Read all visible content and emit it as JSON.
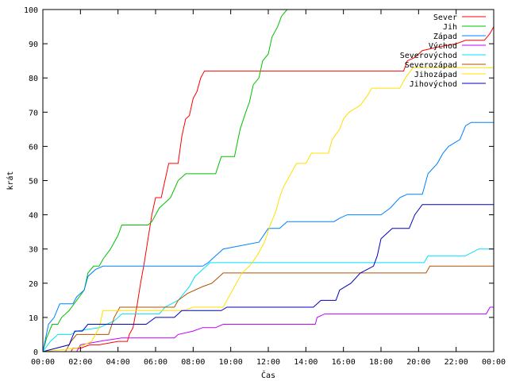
{
  "chart_data": {
    "type": "line",
    "title": "",
    "xlabel": "Čas",
    "ylabel": "krát",
    "xlim": [
      0,
      24
    ],
    "ylim": [
      0,
      100
    ],
    "x_ticks": [
      "00:00",
      "02:00",
      "04:00",
      "06:00",
      "08:00",
      "10:00",
      "12:00",
      "14:00",
      "16:00",
      "18:00",
      "20:00",
      "22:00",
      "00:00"
    ],
    "y_ticks": [
      0,
      10,
      20,
      30,
      40,
      50,
      60,
      70,
      80,
      90,
      100
    ],
    "grid": false,
    "legend_position": "top-right",
    "series": [
      {
        "name": "Sever",
        "color": "#ff0000",
        "points": [
          [
            0,
            0
          ],
          [
            1.5,
            0
          ],
          [
            1.6,
            1
          ],
          [
            2,
            1
          ],
          [
            2.5,
            2
          ],
          [
            3,
            2
          ],
          [
            4,
            3
          ],
          [
            4.5,
            3
          ],
          [
            4.6,
            5
          ],
          [
            4.8,
            7
          ],
          [
            5,
            13
          ],
          [
            5.2,
            20
          ],
          [
            5.4,
            26
          ],
          [
            5.6,
            33
          ],
          [
            5.8,
            40
          ],
          [
            6,
            45
          ],
          [
            6.3,
            45
          ],
          [
            6.5,
            50
          ],
          [
            6.7,
            55
          ],
          [
            7.2,
            55
          ],
          [
            7.4,
            63
          ],
          [
            7.6,
            68
          ],
          [
            7.8,
            69
          ],
          [
            8,
            74
          ],
          [
            8.2,
            76
          ],
          [
            8.4,
            80
          ],
          [
            8.6,
            82
          ],
          [
            19.2,
            82
          ],
          [
            19.4,
            85
          ],
          [
            19.8,
            86
          ],
          [
            20.2,
            88
          ],
          [
            21,
            89
          ],
          [
            22,
            90
          ],
          [
            22.5,
            91
          ],
          [
            23.5,
            91
          ],
          [
            23.8,
            93
          ],
          [
            24,
            95
          ]
        ]
      },
      {
        "name": "Jih",
        "color": "#00c000",
        "points": [
          [
            0,
            0
          ],
          [
            0.2,
            4
          ],
          [
            0.5,
            8
          ],
          [
            0.8,
            8
          ],
          [
            1,
            10
          ],
          [
            1.4,
            12
          ],
          [
            1.8,
            15
          ],
          [
            2.2,
            18
          ],
          [
            2.4,
            23
          ],
          [
            2.7,
            25
          ],
          [
            3,
            25
          ],
          [
            3.2,
            27
          ],
          [
            3.6,
            30
          ],
          [
            4,
            34
          ],
          [
            4.2,
            37
          ],
          [
            5.6,
            37
          ],
          [
            5.8,
            38
          ],
          [
            6,
            40
          ],
          [
            6.2,
            42
          ],
          [
            6.6,
            44
          ],
          [
            6.8,
            45
          ],
          [
            7.2,
            50
          ],
          [
            7.6,
            52
          ],
          [
            9.2,
            52
          ],
          [
            9.5,
            57
          ],
          [
            10.2,
            57
          ],
          [
            10.5,
            65
          ],
          [
            10.8,
            70
          ],
          [
            11,
            73
          ],
          [
            11.2,
            78
          ],
          [
            11.5,
            80
          ],
          [
            11.7,
            85
          ],
          [
            12,
            87
          ],
          [
            12.2,
            92
          ],
          [
            12.5,
            95
          ],
          [
            12.7,
            98
          ],
          [
            13,
            100
          ]
        ]
      },
      {
        "name": "Západ",
        "color": "#0080ff",
        "points": [
          [
            0,
            0
          ],
          [
            0.3,
            8
          ],
          [
            0.6,
            10
          ],
          [
            0.9,
            14
          ],
          [
            1.6,
            14
          ],
          [
            1.8,
            16
          ],
          [
            2.2,
            18
          ],
          [
            2.4,
            22
          ],
          [
            2.8,
            24
          ],
          [
            3.2,
            25
          ],
          [
            8.5,
            25
          ],
          [
            8.8,
            26
          ],
          [
            9.2,
            28
          ],
          [
            9.6,
            30
          ],
          [
            11.5,
            32
          ],
          [
            12,
            36
          ],
          [
            12.6,
            36
          ],
          [
            13,
            38
          ],
          [
            15.5,
            38
          ],
          [
            15.8,
            39
          ],
          [
            16.2,
            40
          ],
          [
            18,
            40
          ],
          [
            18.5,
            42
          ],
          [
            19,
            45
          ],
          [
            19.4,
            46
          ],
          [
            20.2,
            46
          ],
          [
            20.5,
            52
          ],
          [
            21,
            55
          ],
          [
            21.3,
            58
          ],
          [
            21.6,
            60
          ],
          [
            22.2,
            62
          ],
          [
            22.5,
            66
          ],
          [
            22.8,
            67
          ],
          [
            24,
            67
          ]
        ]
      },
      {
        "name": "Východ",
        "color": "#c000ff",
        "points": [
          [
            0,
            0
          ],
          [
            1.8,
            0
          ],
          [
            2,
            2
          ],
          [
            3,
            3
          ],
          [
            4.2,
            4
          ],
          [
            7,
            4
          ],
          [
            7.2,
            5
          ],
          [
            8,
            6
          ],
          [
            8.5,
            7
          ],
          [
            9.2,
            7
          ],
          [
            9.6,
            8
          ],
          [
            14.5,
            8
          ],
          [
            14.6,
            10
          ],
          [
            15,
            11
          ],
          [
            23.6,
            11
          ],
          [
            23.8,
            13
          ],
          [
            24,
            13
          ]
        ]
      },
      {
        "name": "Severovýchod",
        "color": "#00e0ff",
        "points": [
          [
            0,
            0
          ],
          [
            0.4,
            3
          ],
          [
            0.8,
            5
          ],
          [
            1.5,
            5
          ],
          [
            1.8,
            6
          ],
          [
            3,
            7
          ],
          [
            3.8,
            9
          ],
          [
            4.2,
            11
          ],
          [
            6.2,
            11
          ],
          [
            6.5,
            13
          ],
          [
            7.2,
            15
          ],
          [
            7.8,
            19
          ],
          [
            8.1,
            22
          ],
          [
            8.5,
            24
          ],
          [
            8.9,
            26
          ],
          [
            20.3,
            26
          ],
          [
            20.5,
            28
          ],
          [
            22.5,
            28
          ],
          [
            23.2,
            30
          ],
          [
            24,
            30
          ]
        ]
      },
      {
        "name": "Severozápad",
        "color": "#b05000",
        "points": [
          [
            0,
            0
          ],
          [
            1.2,
            0
          ],
          [
            1.5,
            3
          ],
          [
            1.8,
            5
          ],
          [
            3.5,
            5
          ],
          [
            3.8,
            10
          ],
          [
            4.1,
            13
          ],
          [
            7,
            13
          ],
          [
            7.2,
            15
          ],
          [
            7.7,
            17
          ],
          [
            8.5,
            19
          ],
          [
            9,
            20
          ],
          [
            9.4,
            22
          ],
          [
            9.6,
            23
          ],
          [
            20.4,
            23
          ],
          [
            20.6,
            25
          ],
          [
            24,
            25
          ]
        ]
      },
      {
        "name": "Jihozápad",
        "color": "#ffe000",
        "points": [
          [
            0,
            0
          ],
          [
            1.8,
            1
          ],
          [
            2.6,
            3
          ],
          [
            3,
            7
          ],
          [
            3.2,
            12
          ],
          [
            7.5,
            12
          ],
          [
            8,
            13
          ],
          [
            9.6,
            13
          ],
          [
            10,
            17
          ],
          [
            10.3,
            20
          ],
          [
            10.6,
            23
          ],
          [
            11,
            25
          ],
          [
            11.4,
            28
          ],
          [
            11.8,
            32
          ],
          [
            12.1,
            37
          ],
          [
            12.4,
            41
          ],
          [
            12.6,
            45
          ],
          [
            12.8,
            48
          ],
          [
            13.2,
            52
          ],
          [
            13.5,
            55
          ],
          [
            14,
            55
          ],
          [
            14.3,
            58
          ],
          [
            15.2,
            58
          ],
          [
            15.4,
            62
          ],
          [
            15.8,
            65
          ],
          [
            16,
            68
          ],
          [
            16.3,
            70
          ],
          [
            16.9,
            72
          ],
          [
            17.3,
            75
          ],
          [
            17.5,
            77
          ],
          [
            19,
            77
          ],
          [
            19.3,
            80
          ],
          [
            19.7,
            83
          ],
          [
            24,
            83
          ]
        ]
      },
      {
        "name": "Jihovýchod",
        "color": "#0000c0",
        "points": [
          [
            0,
            0
          ],
          [
            1.4,
            2
          ],
          [
            1.7,
            6
          ],
          [
            2.1,
            6
          ],
          [
            2.4,
            8
          ],
          [
            5.5,
            8
          ],
          [
            6,
            10
          ],
          [
            7,
            10
          ],
          [
            7.4,
            12
          ],
          [
            9.5,
            12
          ],
          [
            9.8,
            13
          ],
          [
            14.4,
            13
          ],
          [
            14.8,
            15
          ],
          [
            15.6,
            15
          ],
          [
            15.8,
            18
          ],
          [
            16.4,
            20
          ],
          [
            16.9,
            23
          ],
          [
            17.6,
            25
          ],
          [
            17.8,
            28
          ],
          [
            18,
            33
          ],
          [
            18.6,
            36
          ],
          [
            19.5,
            36
          ],
          [
            19.8,
            40
          ],
          [
            20.2,
            43
          ],
          [
            24,
            43
          ]
        ]
      }
    ]
  }
}
